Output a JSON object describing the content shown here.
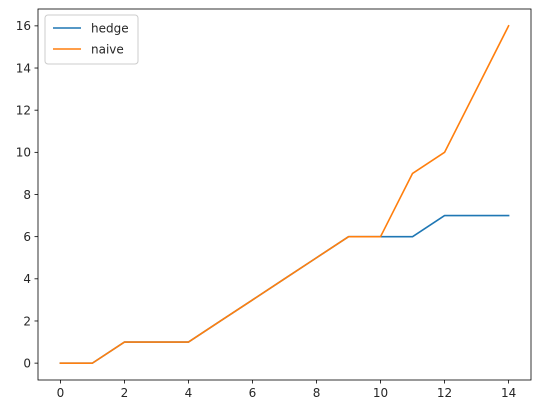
{
  "chart_data": {
    "type": "line",
    "title": "",
    "xlabel": "",
    "ylabel": "",
    "xlim": [
      -0.7,
      14.7
    ],
    "ylim": [
      -0.8,
      16.8
    ],
    "xticks": [
      0,
      2,
      4,
      6,
      8,
      10,
      12,
      14
    ],
    "yticks": [
      0,
      2,
      4,
      6,
      8,
      10,
      12,
      14,
      16
    ],
    "grid": false,
    "legend_position": "top-left",
    "x": [
      0,
      1,
      2,
      3,
      4,
      5,
      6,
      7,
      8,
      9,
      10,
      11,
      12,
      13,
      14
    ],
    "series": [
      {
        "name": "hedge",
        "color": "#1f77b4",
        "values": [
          0,
          0,
          1,
          1,
          1,
          2,
          3,
          4,
          5,
          6,
          6,
          6,
          7,
          7,
          7
        ]
      },
      {
        "name": "naive",
        "color": "#ff7f0e",
        "values": [
          0,
          0,
          1,
          1,
          1,
          2,
          3,
          4,
          5,
          6,
          6,
          9,
          10,
          13,
          16
        ]
      }
    ]
  }
}
